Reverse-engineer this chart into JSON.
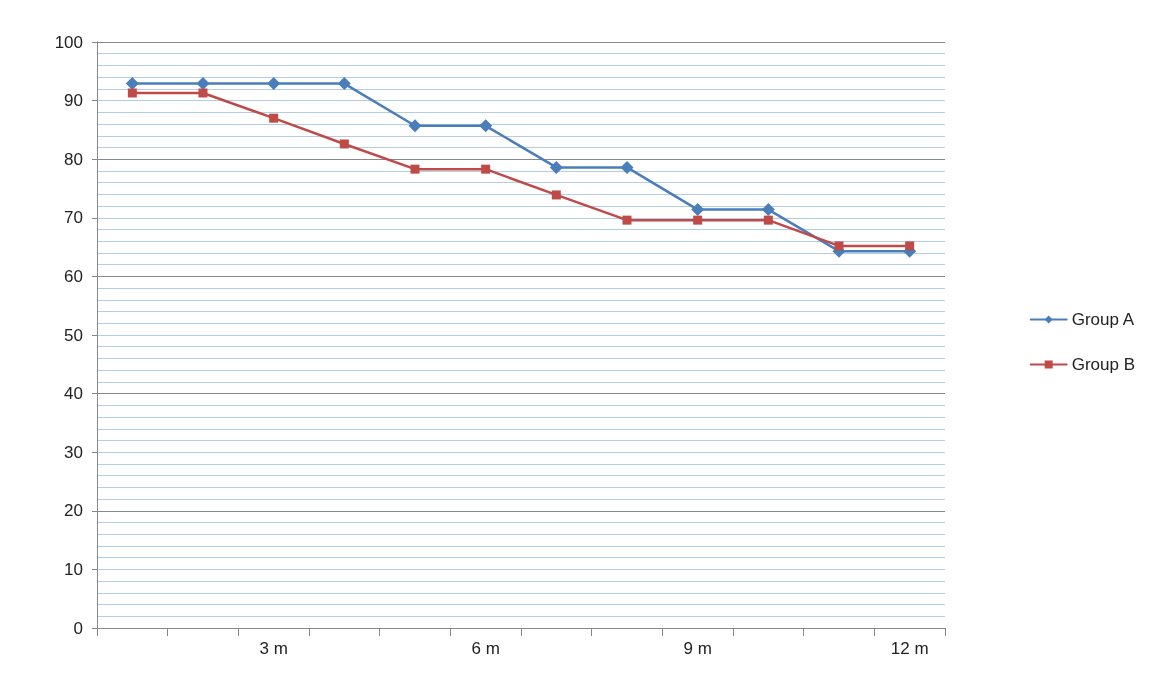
{
  "chart_data": {
    "type": "line",
    "categories": [
      null,
      null,
      "3 m",
      null,
      null,
      "6 m",
      null,
      null,
      "9 m",
      null,
      null,
      "12 m"
    ],
    "series": [
      {
        "name": "Group A",
        "color": "#4a7ebb",
        "marker": "diamond",
        "values": [
          92.9,
          92.9,
          92.9,
          92.9,
          85.7,
          85.7,
          78.6,
          78.6,
          71.4,
          71.4,
          64.3,
          64.3
        ]
      },
      {
        "name": "Group B",
        "color": "#be4b48",
        "marker": "square",
        "values": [
          91.3,
          91.3,
          87.0,
          82.6,
          78.3,
          78.3,
          73.9,
          69.6,
          69.6,
          69.6,
          65.2,
          65.2
        ]
      }
    ],
    "ylim": [
      0,
      100
    ],
    "yticks": [
      0,
      10,
      20,
      30,
      40,
      50,
      60,
      70,
      80,
      90,
      100
    ],
    "grid": "y",
    "legend": "right",
    "line_style": "solid"
  }
}
